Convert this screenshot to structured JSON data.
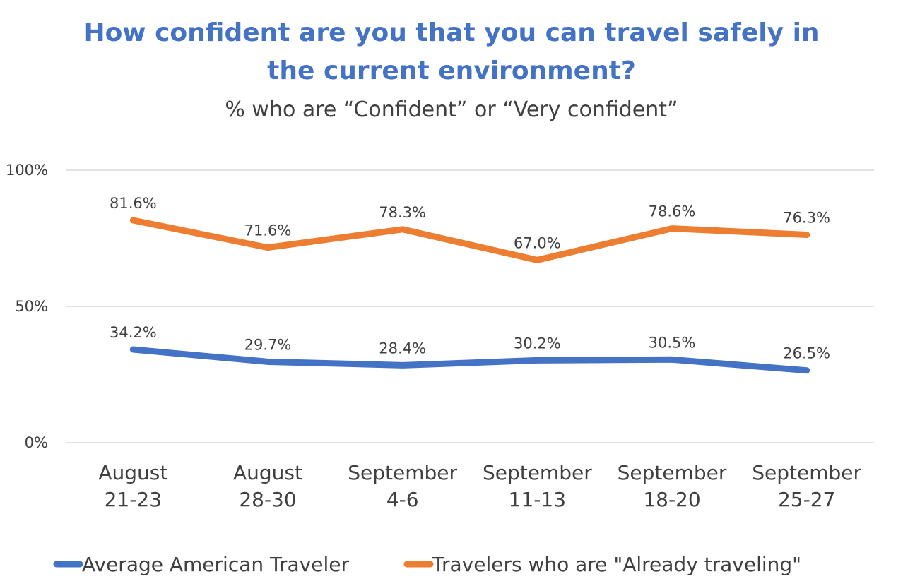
{
  "chart_data": {
    "type": "line",
    "title_line1": "How confident are you that you can travel safely in",
    "title_line2": "the current environment?",
    "subtitle": "% who are “Confident” or “Very confident”",
    "categories": [
      [
        "August",
        "21-23"
      ],
      [
        "August",
        "28-30"
      ],
      [
        "September",
        "4-6"
      ],
      [
        "September",
        "11-13"
      ],
      [
        "September",
        "18-20"
      ],
      [
        "September",
        "25-27"
      ]
    ],
    "yticks": [
      {
        "value": 0,
        "label": "0%"
      },
      {
        "value": 50,
        "label": "50%"
      },
      {
        "value": 100,
        "label": "100%"
      }
    ],
    "ylim": [
      0,
      100
    ],
    "grid": true,
    "legend_position": "bottom",
    "series": [
      {
        "name": "Average American Traveler",
        "color": "#4472C4",
        "values": [
          34.2,
          29.7,
          28.4,
          30.2,
          30.5,
          26.5
        ],
        "labels": [
          "34.2%",
          "29.7%",
          "28.4%",
          "30.2%",
          "30.5%",
          "26.5%"
        ]
      },
      {
        "name": "Travelers who are \"Already traveling\"",
        "color": "#ED7D31",
        "values": [
          81.6,
          71.6,
          78.3,
          67.0,
          78.6,
          76.3
        ],
        "labels": [
          "81.6%",
          "71.6%",
          "78.3%",
          "67.0%",
          "78.6%",
          "76.3%"
        ]
      }
    ]
  }
}
